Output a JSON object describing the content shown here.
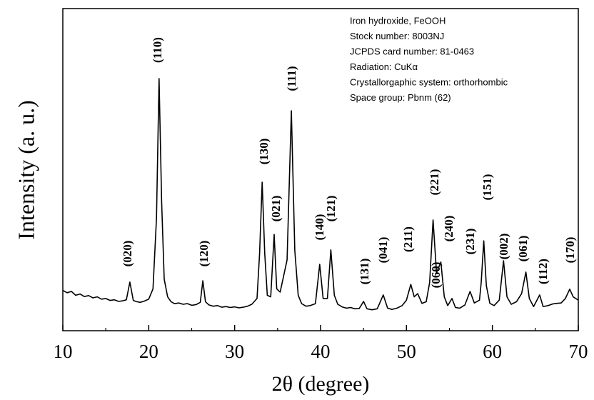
{
  "chart_data": {
    "type": "line",
    "xlabel": "2θ (degree)",
    "ylabel": "Intensity (a. u.)",
    "info": [
      "Iron hydroxide, FeOOH",
      "Stock number: 8003NJ",
      "JCPDS card number: 81-0463",
      "Radiation: CuKα",
      "Crystallorgaphic system: orthorhombic",
      "Space group: Pbnm (62)"
    ],
    "annotations": [
      "(020)",
      "(110)",
      "(120)",
      "(130)",
      "(021)",
      "(111)",
      "(140)",
      "(121)",
      "(131)",
      "(041)",
      "(211)",
      "(221)",
      "(240)",
      "(060)",
      "(231)",
      "(151)",
      "(002)",
      "(061)",
      "(112)",
      "(170)"
    ],
    "xlim": [
      10,
      70
    ],
    "xticks": [
      10,
      20,
      30,
      40,
      50,
      60,
      70
    ],
    "xminorticks": [
      15,
      25,
      35,
      45,
      55,
      65
    ],
    "ylim": [
      0,
      100
    ],
    "color": "#000000",
    "x": [
      10,
      10.5,
      11,
      11.5,
      12,
      12.5,
      13,
      13.5,
      14,
      14.5,
      15,
      15.5,
      16,
      16.5,
      17,
      17.4,
      17.8,
      18.2,
      18.6,
      19,
      19.5,
      20,
      20.5,
      20.9,
      21.2,
      21.5,
      21.8,
      22.2,
      22.6,
      23,
      23.5,
      24,
      24.5,
      25,
      25.5,
      26,
      26.3,
      26.6,
      27,
      27.5,
      28,
      28.5,
      29,
      29.5,
      30,
      30.5,
      31,
      31.5,
      32,
      32.6,
      32.9,
      33.2,
      33.5,
      33.8,
      34.2,
      34.6,
      34.9,
      35.3,
      35.7,
      36.1,
      36.6,
      37,
      37.4,
      37.8,
      38.3,
      38.8,
      39.4,
      39.9,
      40.3,
      40.8,
      41.2,
      41.6,
      42,
      42.5,
      43,
      43.5,
      44,
      44.5,
      45,
      45.4,
      46,
      46.6,
      47.3,
      47.8,
      48.3,
      48.9,
      49.5,
      50,
      50.5,
      50.9,
      51.3,
      51.8,
      52.3,
      52.7,
      53.1,
      53.5,
      54,
      54.4,
      54.8,
      55.3,
      55.7,
      56.2,
      56.8,
      57.4,
      57.9,
      58.5,
      58.7,
      59,
      59.3,
      59.7,
      60.2,
      60.8,
      61.3,
      61.7,
      62.2,
      62.8,
      63.4,
      63.9,
      64.3,
      64.8,
      65.5,
      65.9,
      66.5,
      67,
      67.5,
      68,
      68.5,
      69,
      69.4,
      70
    ],
    "values": [
      12.5,
      11.8,
      12.2,
      11.0,
      11.4,
      10.6,
      10.9,
      10.2,
      10.5,
      9.8,
      10.0,
      9.4,
      9.6,
      9.1,
      9.3,
      9.6,
      15.1,
      9.4,
      9.0,
      8.8,
      9.2,
      9.8,
      13,
      35,
      78.3,
      40,
      16,
      10.5,
      9.0,
      8.4,
      8.6,
      8.2,
      8.4,
      7.9,
      8.1,
      8.8,
      15.5,
      9.0,
      8.0,
      7.6,
      7.8,
      7.3,
      7.5,
      7.2,
      7.4,
      7.1,
      7.3,
      7.6,
      8.2,
      10,
      24,
      46.1,
      24,
      11,
      10.5,
      29.9,
      13,
      12,
      17,
      22,
      68.3,
      25,
      11,
      8.4,
      7.6,
      7.8,
      8.4,
      20.6,
      10,
      10,
      25.1,
      11,
      8.2,
      7.4,
      7.0,
      7.2,
      6.8,
      6.9,
      9.1,
      6.8,
      6.5,
      6.8,
      11.1,
      7,
      6.6,
      7.0,
      7.8,
      9.5,
      14.4,
      10.5,
      11.5,
      8.5,
      9.0,
      15,
      34.4,
      18,
      21.3,
      10.5,
      7.8,
      10.0,
      7.2,
      7.0,
      8.0,
      12.2,
      8.6,
      9.5,
      15,
      27.9,
      14,
      8.5,
      7.8,
      9.5,
      21.7,
      10.5,
      8.2,
      9.0,
      11.5,
      18.2,
      10,
      7.5,
      11.1,
      7.5,
      7.8,
      8.3,
      8.5,
      8.6,
      10,
      12.9,
      10.5,
      9.5
    ]
  }
}
